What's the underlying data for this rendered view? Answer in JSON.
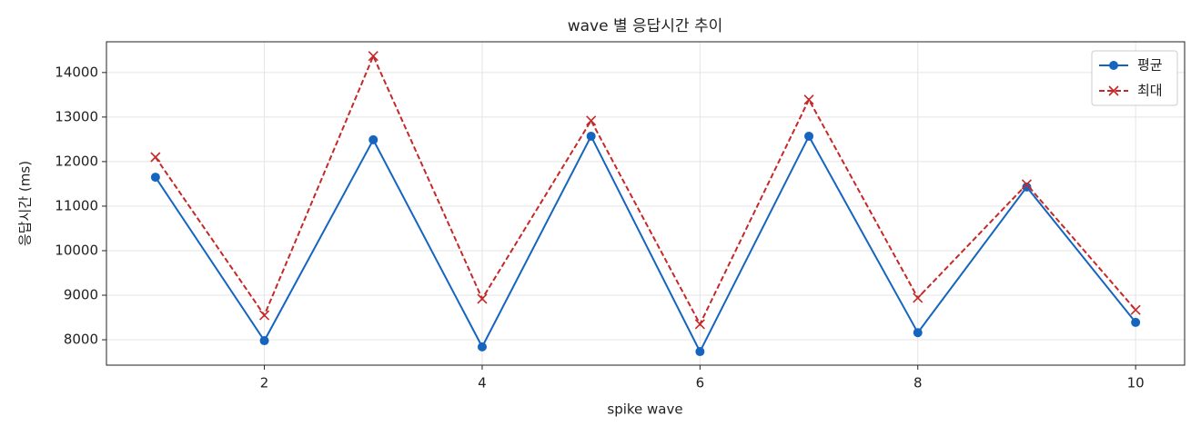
{
  "chart_data": {
    "type": "line",
    "title": "wave 별 응답시간 추이",
    "x_label": "spike wave",
    "y_label": "응답시간 (ms)",
    "x": [
      1,
      2,
      3,
      4,
      5,
      6,
      7,
      8,
      9,
      10
    ],
    "series": [
      {
        "name": "평균",
        "color": "#1565c0",
        "marker": "o",
        "dash": false,
        "values": [
          11650,
          7980,
          12490,
          7840,
          12570,
          7735,
          12570,
          8160,
          11430,
          8390
        ]
      },
      {
        "name": "최대",
        "color": "#c62828",
        "marker": "x",
        "dash": true,
        "values": [
          12100,
          8550,
          14370,
          8920,
          12920,
          8350,
          13390,
          8940,
          11490,
          8670
        ]
      }
    ],
    "xlim": [
      0.55,
      10.45
    ],
    "ylim": [
      7430,
      14690
    ],
    "xticks": [
      2,
      4,
      6,
      8,
      10
    ],
    "yticks": [
      8000,
      9000,
      10000,
      11000,
      12000,
      13000,
      14000
    ],
    "grid": true,
    "legend": "upper right"
  }
}
